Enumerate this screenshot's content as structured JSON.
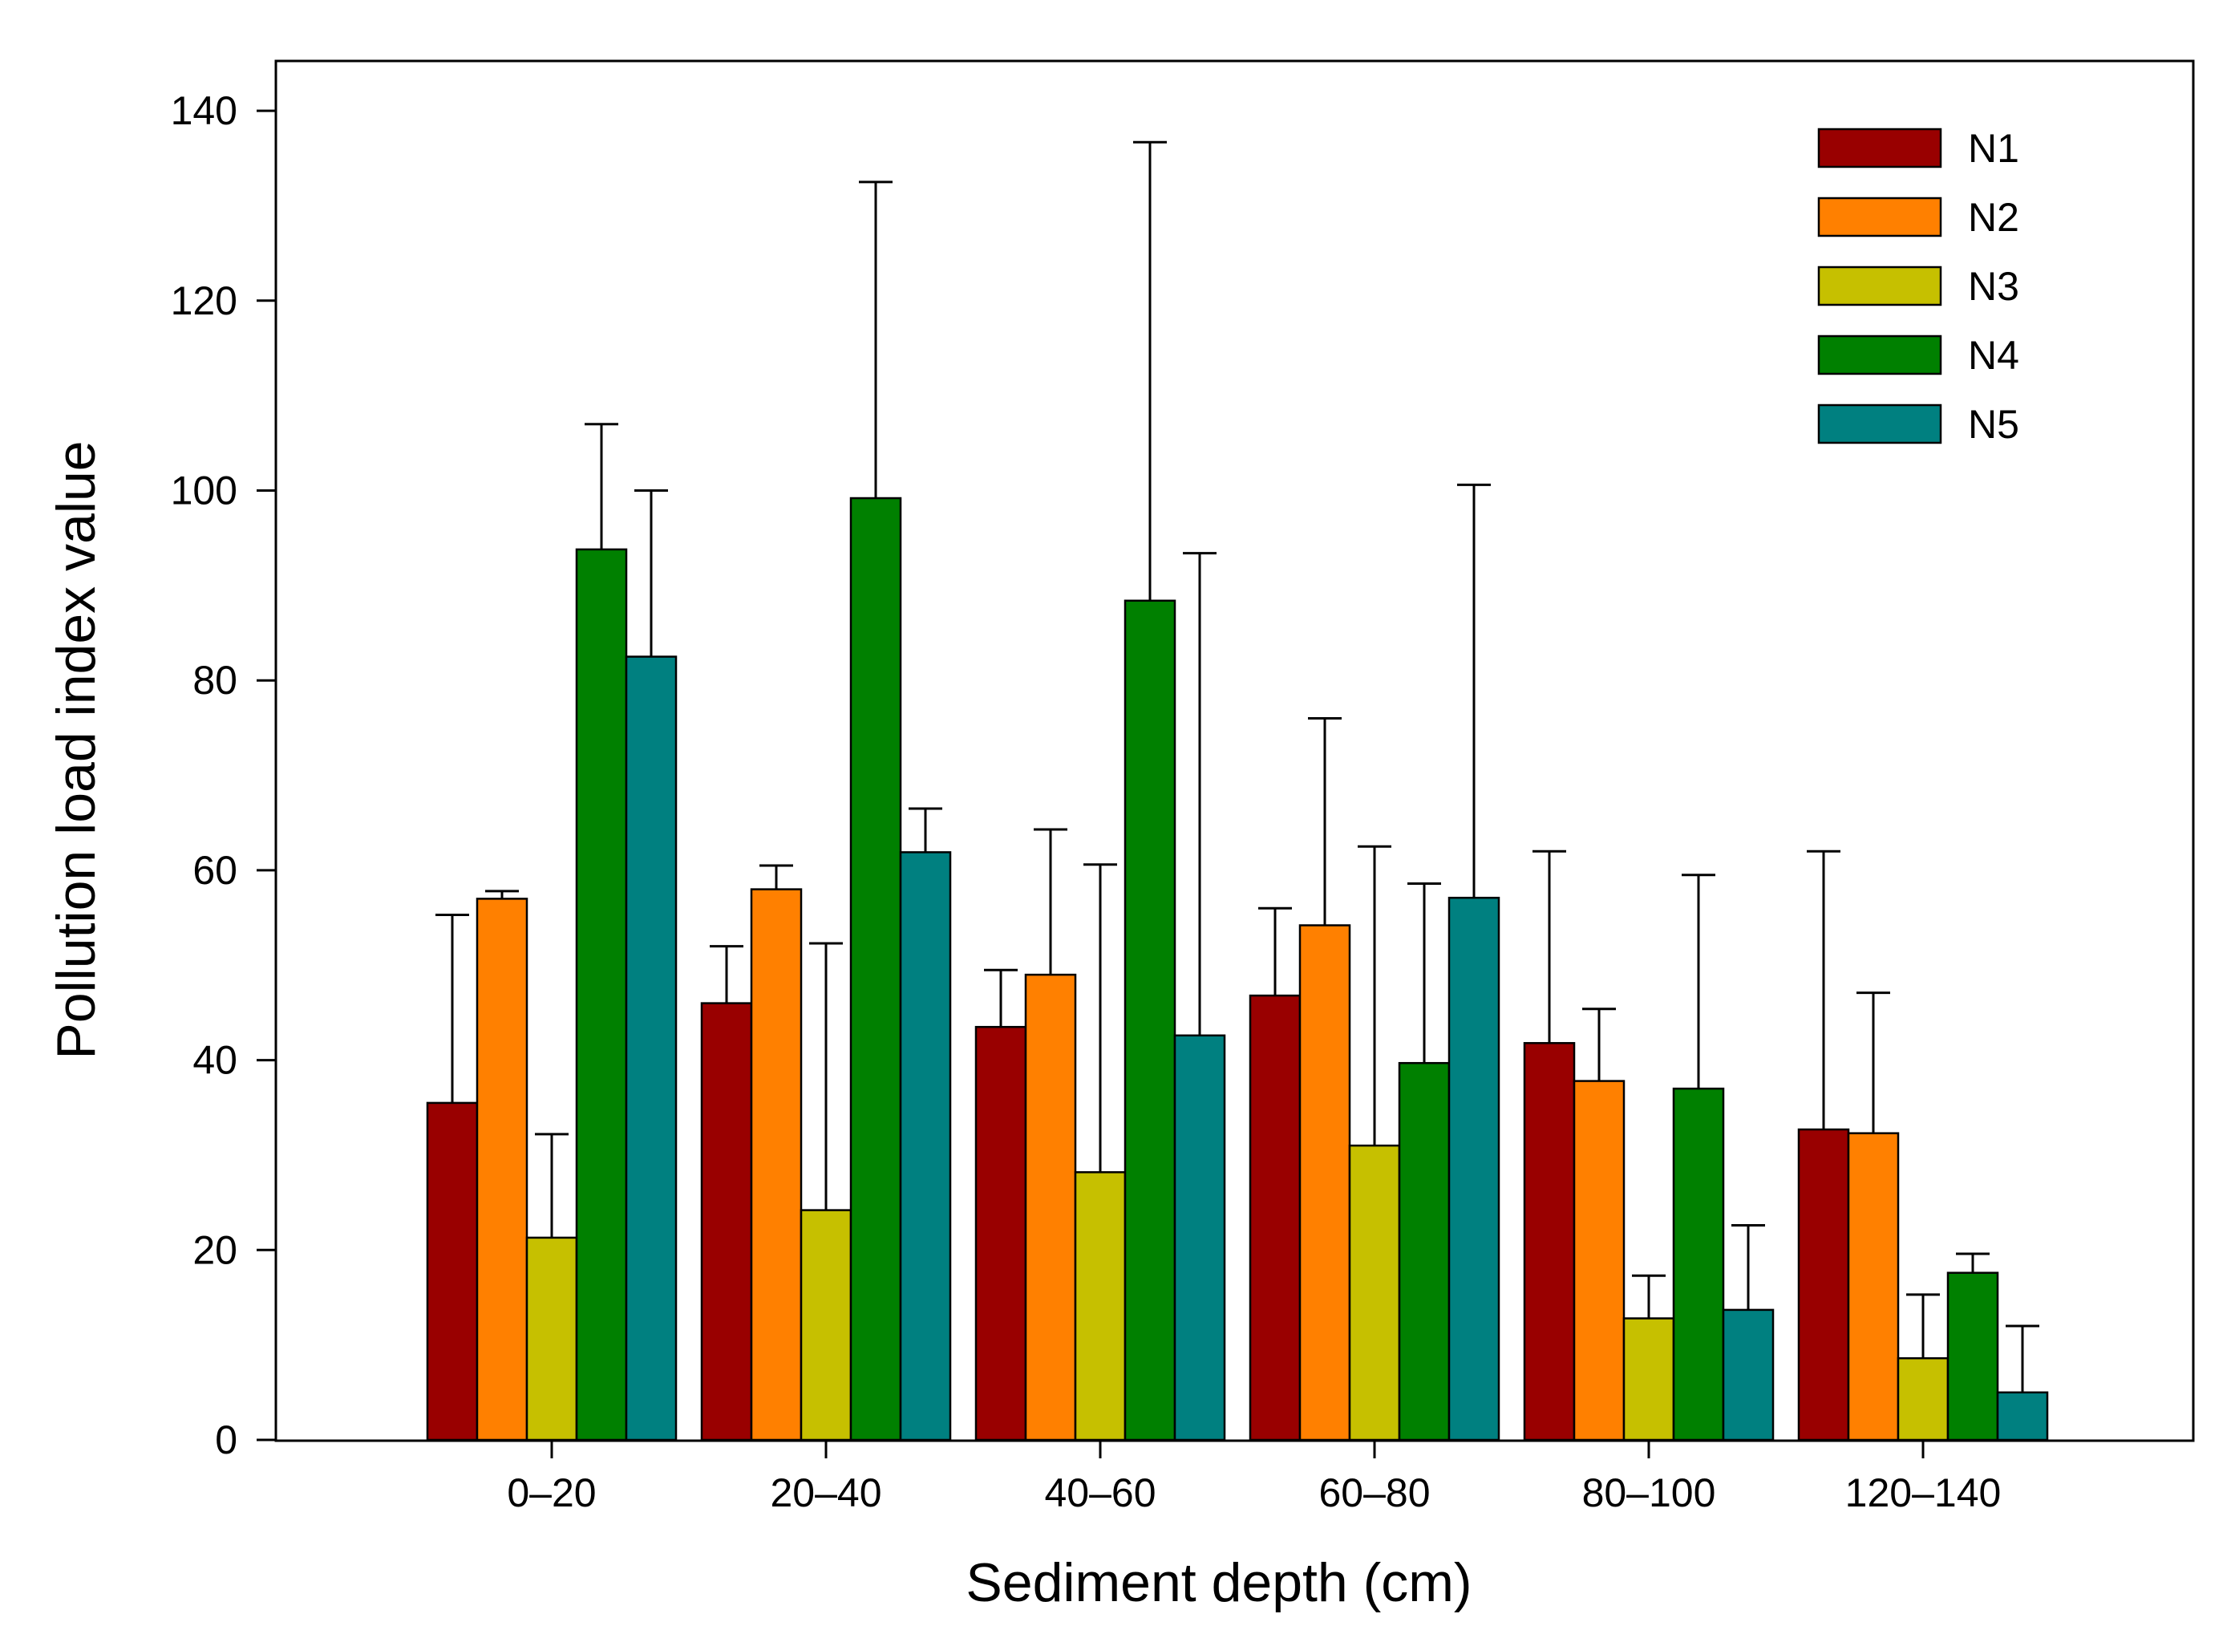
{
  "chart_data": {
    "type": "bar",
    "title": "",
    "xlabel": "Sediment depth (cm)",
    "ylabel": "Pollution load index value",
    "ylim": [
      0,
      145
    ],
    "yticks": [
      0,
      20,
      40,
      60,
      80,
      100,
      120,
      140
    ],
    "ytick_labels": [
      "0",
      "20",
      "40",
      "60",
      "80",
      "100",
      "120",
      "140"
    ],
    "grid": false,
    "legend_position": "top-right",
    "error_bars": "upper",
    "categories": [
      "0–20",
      "20–40",
      "40–60",
      "60–80",
      "80–100",
      "120–140"
    ],
    "series": [
      {
        "name": "N1",
        "color": "#990000",
        "values": [
          35.5,
          46.0,
          43.5,
          46.8,
          41.8,
          32.7
        ],
        "error_top": [
          55.3,
          52.0,
          49.5,
          56.0,
          62.0,
          62.0
        ]
      },
      {
        "name": "N2",
        "color": "#ff8000",
        "values": [
          57.0,
          58.0,
          49.0,
          54.2,
          37.8,
          32.3
        ],
        "error_top": [
          57.8,
          60.5,
          64.3,
          76.0,
          45.4,
          47.1
        ]
      },
      {
        "name": "N3",
        "color": "#c6c000",
        "values": [
          21.3,
          24.2,
          28.2,
          31.0,
          12.8,
          8.6
        ],
        "error_top": [
          32.2,
          52.3,
          60.6,
          62.5,
          17.3,
          15.3
        ]
      },
      {
        "name": "N4",
        "color": "#008000",
        "values": [
          93.8,
          99.2,
          88.4,
          39.7,
          37.0,
          17.6
        ],
        "error_top": [
          107.0,
          132.5,
          136.7,
          58.6,
          59.5,
          19.6
        ]
      },
      {
        "name": "N5",
        "color": "#008080",
        "values": [
          82.5,
          61.9,
          42.6,
          57.1,
          13.7,
          5.0
        ],
        "error_top": [
          100.0,
          66.5,
          93.4,
          100.6,
          22.6,
          12.0
        ]
      }
    ]
  }
}
